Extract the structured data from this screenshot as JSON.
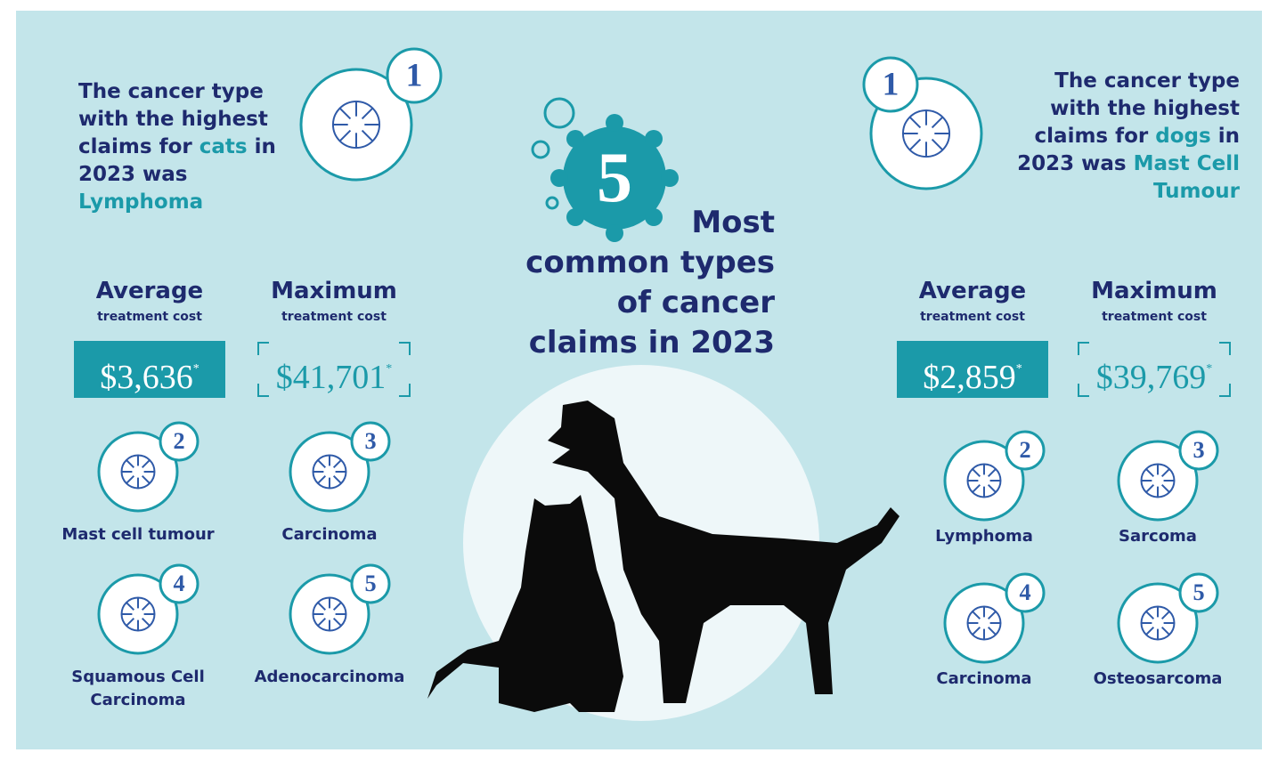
{
  "title": {
    "number": "5",
    "lines": [
      "Most",
      "common types",
      "of cancer",
      "claims in 2023"
    ]
  },
  "cats": {
    "headline": {
      "rank": 1,
      "segments": [
        {
          "text": "The cancer type with the highest claims for",
          "highlight": false
        },
        {
          "text": "cats",
          "highlight": true
        },
        {
          "text": "in 2023 was",
          "highlight": false
        },
        {
          "text": "Lymphoma",
          "highlight": true
        }
      ]
    },
    "costs": [
      {
        "label": "Average",
        "sublabel": "treatment cost",
        "amount": "$3,636",
        "note": "*",
        "style": "filled"
      },
      {
        "label": "Maximum",
        "sublabel": "treatment cost",
        "amount": "$41,701",
        "note": "*",
        "style": "bracket"
      }
    ],
    "ranks": [
      {
        "rank": 2,
        "name": "Mast cell tumour"
      },
      {
        "rank": 3,
        "name": "Carcinoma"
      },
      {
        "rank": 4,
        "name": "Squamous Cell Carcinoma"
      },
      {
        "rank": 5,
        "name": "Adenocarcinoma"
      }
    ]
  },
  "dogs": {
    "headline": {
      "rank": 1,
      "segments": [
        {
          "text": "The cancer type with the highest claims for",
          "highlight": false
        },
        {
          "text": "dogs",
          "highlight": true
        },
        {
          "text": "in 2023 was",
          "highlight": false
        },
        {
          "text": "Mast Cell Tumour",
          "highlight": true
        }
      ]
    },
    "costs": [
      {
        "label": "Average",
        "sublabel": "treatment cost",
        "amount": "$2,859",
        "note": "*",
        "style": "filled"
      },
      {
        "label": "Maximum",
        "sublabel": "treatment cost",
        "amount": "$39,769",
        "note": "*",
        "style": "bracket"
      }
    ],
    "ranks": [
      {
        "rank": 2,
        "name": "Lymphoma"
      },
      {
        "rank": 3,
        "name": "Sarcoma"
      },
      {
        "rank": 4,
        "name": "Carcinoma"
      },
      {
        "rank": 5,
        "name": "Osteosarcoma"
      }
    ]
  }
}
